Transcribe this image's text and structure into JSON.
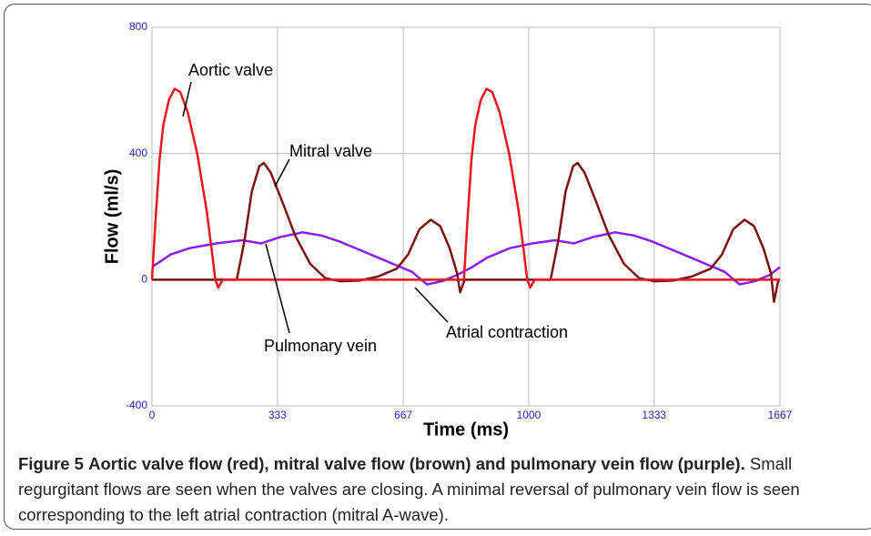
{
  "chart_data": {
    "type": "line",
    "xlabel": "Time (ms)",
    "ylabel": "Flow (ml/s)",
    "xlim": [
      0,
      1667
    ],
    "ylim": [
      -400,
      800
    ],
    "xticks": [
      0,
      333,
      667,
      1000,
      1333,
      1667
    ],
    "yticks": [
      -400,
      0,
      400,
      800
    ],
    "grid": true,
    "series": [
      {
        "name": "Pulmonary vein",
        "color": "#8a1ef2",
        "x": [
          0,
          50,
          100,
          170,
          240,
          290,
          340,
          400,
          450,
          500,
          550,
          600,
          650,
          690,
          730,
          770,
          810,
          850,
          890,
          950,
          1010,
          1070,
          1120,
          1170,
          1230,
          1280,
          1330,
          1380,
          1430,
          1480,
          1520,
          1560,
          1600,
          1640,
          1667
        ],
        "values": [
          40,
          80,
          100,
          115,
          125,
          115,
          135,
          150,
          140,
          120,
          95,
          70,
          45,
          25,
          -15,
          -5,
          15,
          40,
          70,
          100,
          115,
          125,
          115,
          135,
          150,
          140,
          120,
          95,
          70,
          45,
          25,
          -15,
          -5,
          15,
          40
        ]
      },
      {
        "name": "Mitral valve",
        "color": "#7a1212",
        "x": [
          0,
          225,
          245,
          265,
          285,
          297,
          315,
          345,
          380,
          420,
          460,
          500,
          550,
          600,
          650,
          680,
          710,
          740,
          765,
          790,
          810,
          818,
          830,
          1058,
          1078,
          1098,
          1118,
          1130,
          1148,
          1178,
          1213,
          1253,
          1293,
          1333,
          1383,
          1433,
          1483,
          1513,
          1543,
          1573,
          1598,
          1623,
          1643,
          1651,
          1663,
          1667
        ],
        "values": [
          0,
          0,
          120,
          280,
          360,
          370,
          340,
          250,
          140,
          50,
          5,
          -5,
          -3,
          10,
          35,
          80,
          160,
          190,
          170,
          100,
          20,
          -40,
          0,
          0,
          120,
          280,
          360,
          370,
          340,
          250,
          140,
          50,
          5,
          -5,
          -3,
          10,
          35,
          80,
          160,
          190,
          170,
          100,
          20,
          -70,
          0,
          0
        ]
      },
      {
        "name": "Aortic valve",
        "color": "#e8161c",
        "x": [
          0,
          10,
          20,
          30,
          45,
          60,
          75,
          95,
          120,
          145,
          160,
          168,
          176,
          188,
          828,
          838,
          848,
          858,
          873,
          888,
          903,
          923,
          948,
          973,
          988,
          996,
          1004,
          1016,
          1667
        ],
        "values": [
          0,
          200,
          380,
          490,
          570,
          605,
          595,
          530,
          400,
          220,
          80,
          0,
          -25,
          0,
          0,
          200,
          380,
          490,
          570,
          605,
          595,
          530,
          400,
          220,
          80,
          0,
          -25,
          0,
          0
        ]
      }
    ],
    "annotations": [
      "Atrial contraction"
    ]
  },
  "caption": {
    "label": "Figure 5",
    "title": "Aortic valve flow (red), mitral valve flow (brown) and pulmonary vein flow (purple).",
    "text": "Small regurgitant flows are seen when the valves are closing. A minimal reversal of pulmonary vein flow is seen corresponding to the left atrial contraction (mitral A-wave)."
  }
}
